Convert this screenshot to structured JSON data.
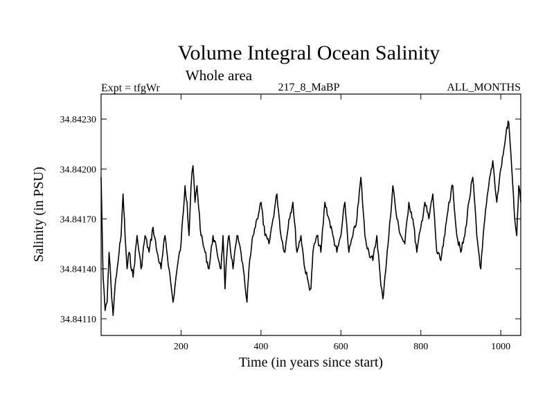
{
  "chart_data": {
    "type": "line",
    "title": "Volume Integral Ocean Salinity",
    "subtitle": "Whole area",
    "header_left": "Expt = tfgWr",
    "header_center": "217_8_MaBP",
    "header_right": "ALL_MONTHS",
    "xlabel": "Time (in years since start)",
    "ylabel": "Salinity (in PSU)",
    "xlim": [
      0,
      1050
    ],
    "ylim": [
      34.841,
      34.84245
    ],
    "x_ticks": [
      200,
      400,
      600,
      800,
      1000
    ],
    "y_ticks": [
      34.8411,
      34.8414,
      34.8417,
      34.842,
      34.8423
    ],
    "x_tick_labels": [
      "200",
      "400",
      "600",
      "800",
      "1000"
    ],
    "y_tick_labels": [
      "34.84110",
      "34.84140",
      "34.84170",
      "34.84200",
      "34.84230"
    ],
    "series": [
      {
        "name": "salinity",
        "x": [
          0,
          5,
          10,
          15,
          20,
          25,
          30,
          35,
          40,
          45,
          50,
          55,
          60,
          65,
          70,
          80,
          90,
          100,
          110,
          120,
          130,
          140,
          150,
          160,
          170,
          180,
          185,
          190,
          200,
          210,
          215,
          220,
          225,
          230,
          235,
          240,
          250,
          260,
          270,
          280,
          290,
          300,
          305,
          310,
          315,
          320,
          330,
          340,
          350,
          360,
          365,
          370,
          380,
          390,
          400,
          410,
          420,
          430,
          440,
          450,
          460,
          470,
          480,
          490,
          500,
          510,
          520,
          525,
          530,
          540,
          550,
          560,
          570,
          580,
          590,
          600,
          610,
          620,
          630,
          640,
          650,
          660,
          670,
          680,
          690,
          700,
          705,
          710,
          720,
          730,
          740,
          750,
          760,
          770,
          780,
          790,
          800,
          810,
          820,
          830,
          840,
          850,
          860,
          870,
          880,
          890,
          900,
          910,
          920,
          930,
          940,
          950,
          960,
          970,
          980,
          990,
          1000,
          1010,
          1015,
          1020,
          1025,
          1030,
          1035,
          1040,
          1045,
          1050
        ],
        "values": [
          34.84195,
          34.84135,
          34.84115,
          34.8412,
          34.8415,
          34.8413,
          34.84112,
          34.8413,
          34.8414,
          34.8415,
          34.8416,
          34.84185,
          34.8416,
          34.8414,
          34.8415,
          34.84135,
          34.8416,
          34.8414,
          34.8416,
          34.8415,
          34.84165,
          34.8415,
          34.8414,
          34.8416,
          34.8414,
          34.8412,
          34.8413,
          34.8414,
          34.84155,
          34.8419,
          34.8418,
          34.8416,
          34.8419,
          34.84202,
          34.8418,
          34.8419,
          34.8416,
          34.8415,
          34.8414,
          34.8416,
          34.8415,
          34.8414,
          34.8416,
          34.84128,
          34.8415,
          34.8416,
          34.8414,
          34.8416,
          34.8415,
          34.8413,
          34.8412,
          34.8414,
          34.8416,
          34.8417,
          34.8418,
          34.8416,
          34.84155,
          34.8417,
          34.84185,
          34.8416,
          34.8415,
          34.8417,
          34.8418,
          34.8415,
          34.8416,
          34.8414,
          34.8413,
          34.84128,
          34.8415,
          34.8416,
          34.8415,
          34.8418,
          34.8417,
          34.8416,
          34.8415,
          34.8416,
          34.8418,
          34.8415,
          34.8416,
          34.8417,
          34.84195,
          34.8416,
          34.8415,
          34.84145,
          34.8416,
          34.8413,
          34.84122,
          34.84135,
          34.8416,
          34.8419,
          34.8417,
          34.8416,
          34.84155,
          34.8418,
          34.8417,
          34.8415,
          34.84165,
          34.8418,
          34.8417,
          34.84185,
          34.8415,
          34.84145,
          34.8416,
          34.8418,
          34.8419,
          34.8416,
          34.8415,
          34.8416,
          34.8418,
          34.84195,
          34.8416,
          34.8414,
          34.8417,
          34.8419,
          34.84205,
          34.8418,
          34.842,
          34.84215,
          34.84225,
          34.84228,
          34.8421,
          34.8419,
          34.8417,
          34.8416,
          34.8419,
          34.8418
        ]
      }
    ]
  }
}
